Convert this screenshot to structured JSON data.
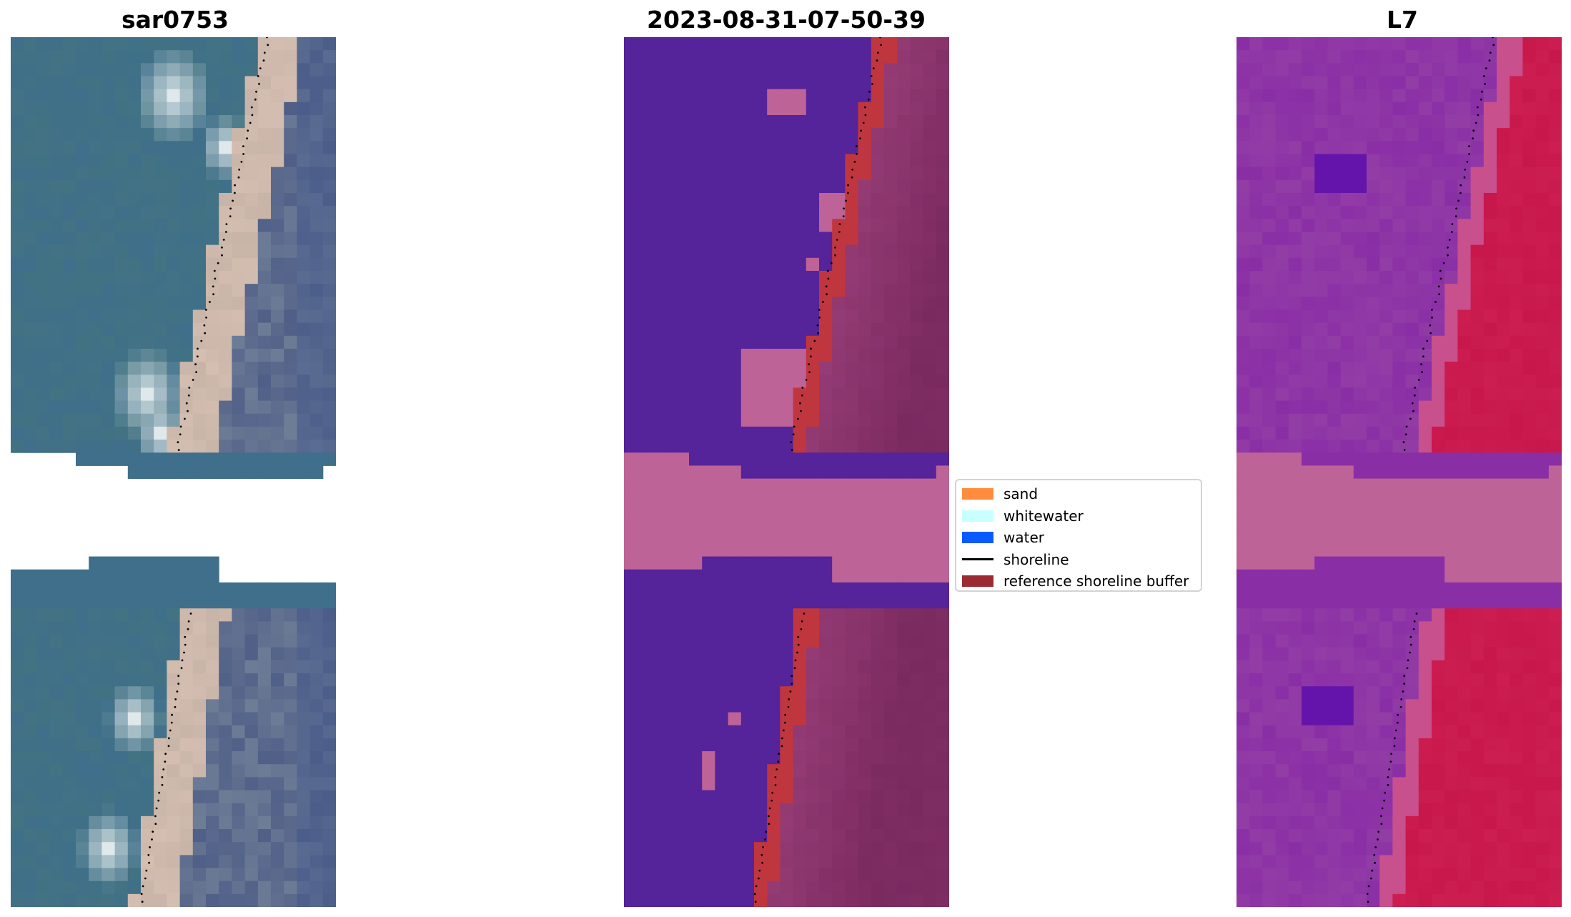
{
  "panels": [
    {
      "title": "sar0753"
    },
    {
      "title": "2023-08-31-07-50-39"
    },
    {
      "title": "L7"
    }
  ],
  "legend": {
    "items": [
      {
        "label": "sand",
        "color": "#ff8c3d",
        "kind": "patch"
      },
      {
        "label": "whitewater",
        "color": "#c8ffff",
        "kind": "patch"
      },
      {
        "label": "water",
        "color": "#0a5bff",
        "kind": "patch"
      },
      {
        "label": "shoreline",
        "color": "#000000",
        "kind": "line"
      },
      {
        "label": "reference shoreline buffer",
        "color": "#9a2b33",
        "kind": "patch"
      }
    ]
  },
  "colors": {
    "rgb_water": "#3f6f8a",
    "rgb_sand": "#c8b4a8",
    "class_water": "#55239a",
    "class_nodata": "#bd6397",
    "class_buffer": "#c0363f",
    "class_land": "#7a2a5f",
    "index_water": "#8a2ea6",
    "index_land": "#c8174b"
  }
}
